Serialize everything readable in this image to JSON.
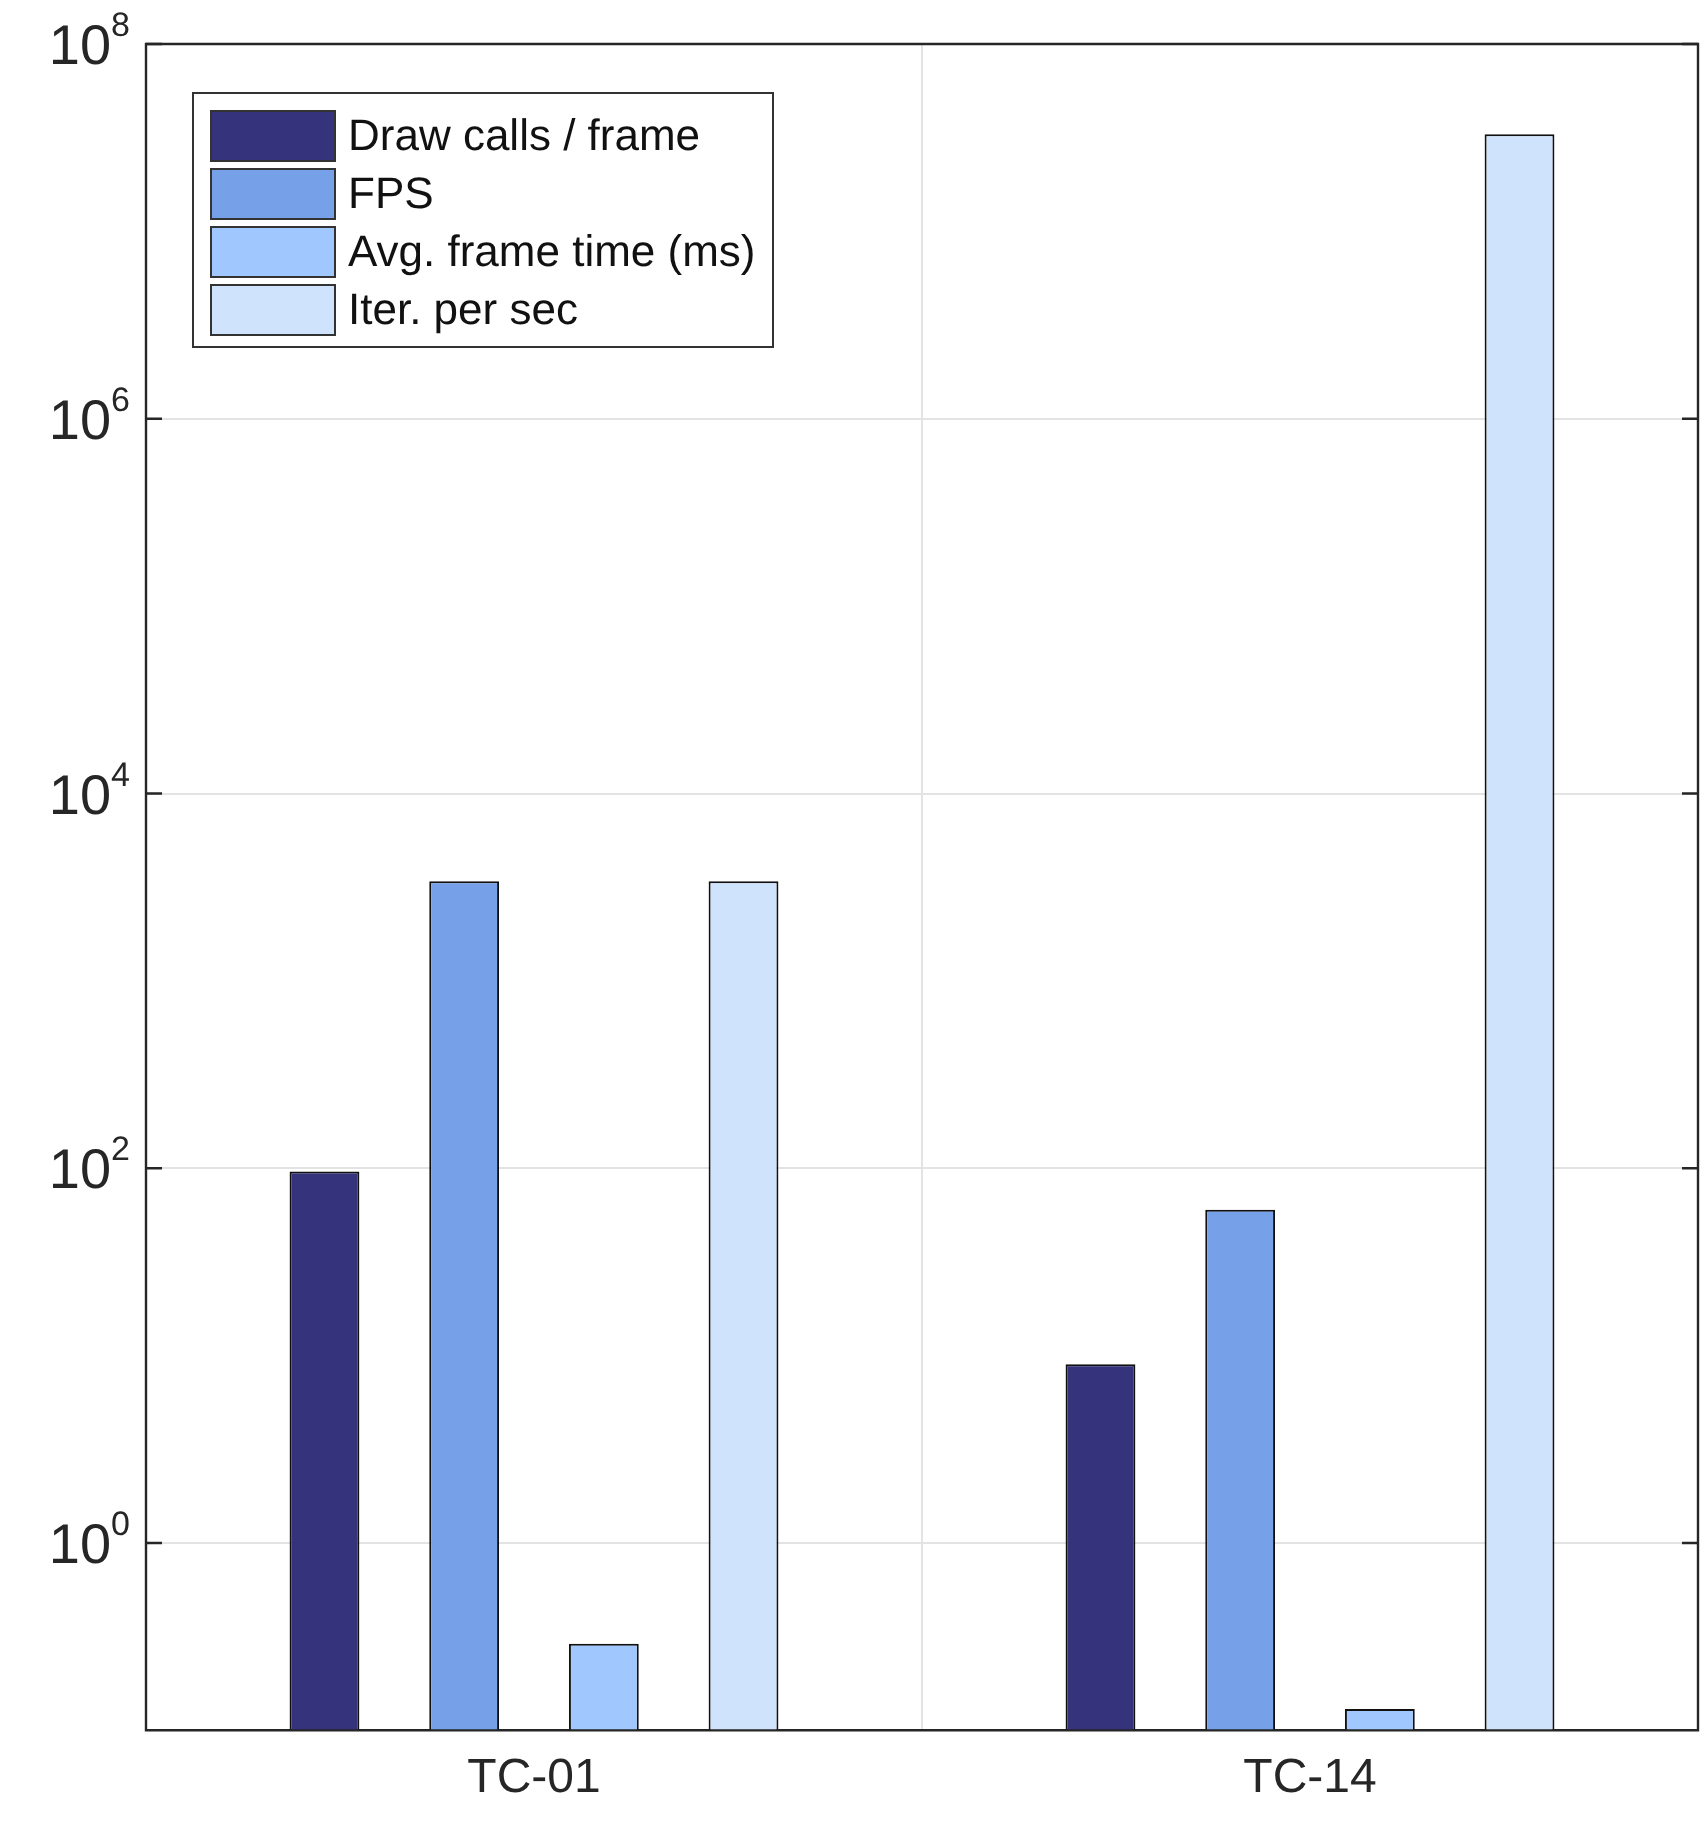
{
  "chart_data": {
    "type": "bar",
    "categories": [
      "TC-01",
      "TC-14"
    ],
    "series": [
      {
        "name": "Draw calls / frame",
        "color": "#34337b",
        "values": [
          96,
          9
        ]
      },
      {
        "name": "FPS",
        "color": "#76a0e8",
        "values": [
          3400,
          60
        ]
      },
      {
        "name": "Avg. frame time (ms)",
        "color": "#a0c8fe",
        "values": [
          0.29,
          0.13
        ]
      },
      {
        "name": "Iter. per sec",
        "color": "#d0e3fd",
        "values": [
          3400,
          33000000
        ]
      }
    ],
    "log": "y",
    "ylim": [
      0.1,
      100000000
    ],
    "yticks": [
      {
        "value": 1,
        "label": "10$^{0}$"
      },
      {
        "value": 100,
        "label": "10$^{2}$"
      },
      {
        "value": 10000,
        "label": "10$^{4}$"
      },
      {
        "value": 1000000,
        "label": "10$^{6}$"
      },
      {
        "value": 100000000,
        "label": "10$^{8}$"
      }
    ],
    "grid": true,
    "legend": "top left"
  }
}
